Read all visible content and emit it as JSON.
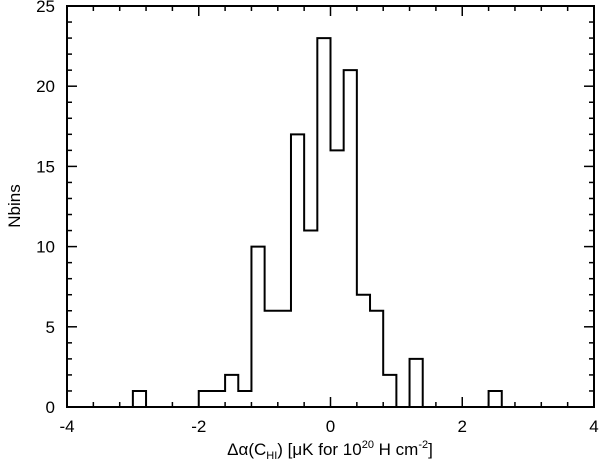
{
  "chart_data": {
    "type": "bar",
    "subtype": "histogram-step",
    "xlabel_parts": {
      "main": "Δα(C",
      "sub": "HI",
      "mid": ") [μK for 10",
      "sup1": "20",
      "mid2": " H cm",
      "sup2": "-2",
      "end": "]"
    },
    "ylabel": "Nbins",
    "xlim": [
      -4,
      4
    ],
    "ylim": [
      0,
      25
    ],
    "x_ticks": [
      -4,
      -2,
      0,
      2,
      4
    ],
    "x_tick_labels": [
      "-4",
      "-2",
      "0",
      "2",
      "4"
    ],
    "y_ticks": [
      0,
      5,
      10,
      15,
      20,
      25
    ],
    "y_tick_labels": [
      "0",
      "5",
      "10",
      "15",
      "20",
      "25"
    ],
    "grid": false,
    "bin_width": 0.2,
    "bin_edges": [
      -3.0,
      -2.8,
      -2.6,
      -2.4,
      -2.2,
      -2.0,
      -1.8,
      -1.6,
      -1.4,
      -1.2,
      -1.0,
      -0.8,
      -0.6,
      -0.4,
      -0.2,
      0.0,
      0.2,
      0.4,
      0.6,
      0.8,
      1.0,
      1.2,
      1.4,
      1.6,
      1.8,
      2.0,
      2.2,
      2.4,
      2.6
    ],
    "counts": [
      1,
      0,
      0,
      0,
      0,
      1,
      1,
      2,
      1,
      10,
      6,
      6,
      17,
      11,
      23,
      16,
      21,
      7,
      6,
      2,
      0,
      3,
      0,
      0,
      0,
      0,
      0,
      1
    ]
  }
}
